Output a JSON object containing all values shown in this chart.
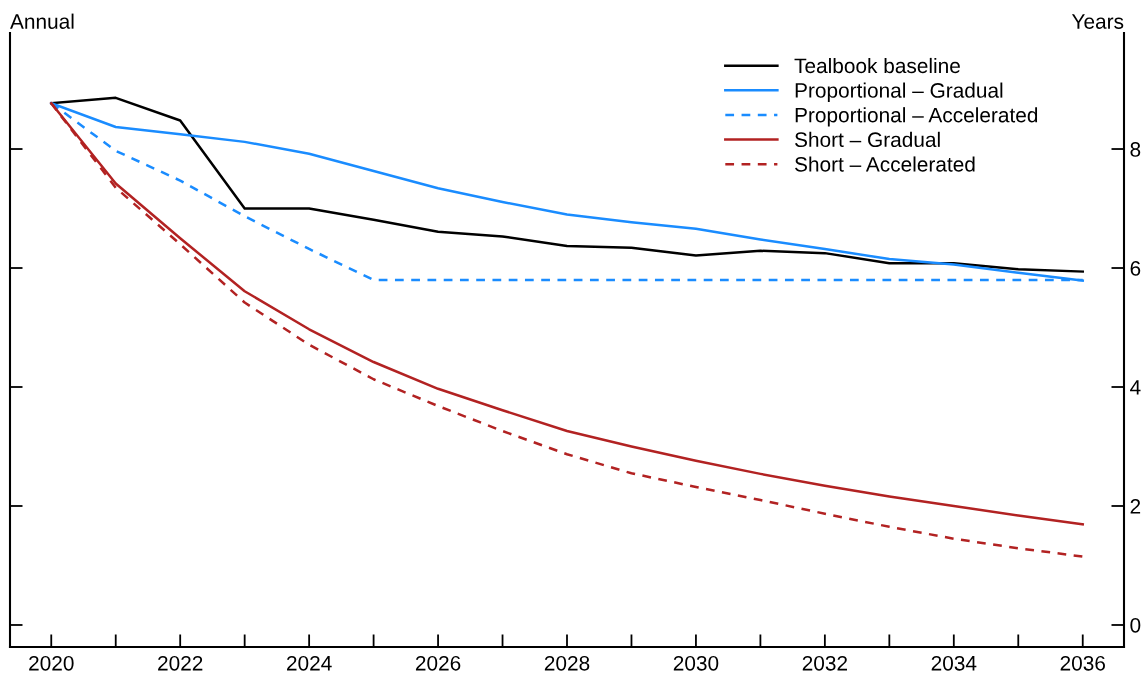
{
  "chart_data": {
    "type": "line",
    "ylabel": "Annual",
    "y2label": "Years",
    "x": [
      2020,
      2021,
      2022,
      2023,
      2024,
      2025,
      2026,
      2027,
      2028,
      2029,
      2030,
      2031,
      2032,
      2033,
      2034,
      2035,
      2036
    ],
    "series": [
      {
        "name": "Tealbook baseline",
        "color": "#000000",
        "line_style": "solid",
        "values": [
          8.77,
          8.86,
          8.48,
          7.0,
          7.0,
          6.81,
          6.61,
          6.53,
          6.37,
          6.34,
          6.21,
          6.29,
          6.25,
          6.08,
          6.08,
          5.98,
          5.94
        ]
      },
      {
        "name": "Proportional – Gradual",
        "color": "#1a8cff",
        "line_style": "solid",
        "values": [
          8.77,
          8.37,
          8.25,
          8.12,
          7.92,
          7.63,
          7.34,
          7.11,
          6.9,
          6.77,
          6.66,
          6.48,
          6.32,
          6.15,
          6.06,
          5.92,
          5.79
        ]
      },
      {
        "name": "Proportional – Accelerated",
        "color": "#1a8cff",
        "line_style": "dashed",
        "values": [
          8.77,
          7.97,
          7.47,
          6.87,
          6.32,
          5.8,
          5.8,
          5.8,
          5.8,
          5.8,
          5.8,
          5.8,
          5.8,
          5.8,
          5.8,
          5.8,
          5.8
        ]
      },
      {
        "name": "Short – Gradual",
        "color": "#b22222",
        "line_style": "solid",
        "values": [
          8.77,
          7.42,
          6.5,
          5.61,
          4.97,
          4.42,
          3.97,
          3.61,
          3.26,
          3.0,
          2.76,
          2.54,
          2.34,
          2.16,
          2.0,
          1.84,
          1.69
        ]
      },
      {
        "name": "Short – Accelerated",
        "color": "#b22222",
        "line_style": "dashed",
        "values": [
          8.77,
          7.35,
          6.4,
          5.42,
          4.71,
          4.13,
          3.68,
          3.26,
          2.87,
          2.55,
          2.32,
          2.1,
          1.87,
          1.65,
          1.45,
          1.29,
          1.15
        ]
      }
    ],
    "xlim": [
      2019.36,
      2036.64
    ],
    "xticks": [
      2020,
      {
        "value": 2021,
        "label": null
      },
      2022,
      {
        "value": 2023,
        "label": null
      },
      2024,
      {
        "value": 2025,
        "label": null
      },
      2026,
      {
        "value": 2027,
        "label": null
      },
      2028,
      {
        "value": 2029,
        "label": null
      },
      2030,
      {
        "value": 2031,
        "label": null
      },
      2032,
      {
        "value": 2033,
        "label": null
      },
      2034,
      {
        "value": 2035,
        "label": null
      },
      2036
    ],
    "ylim": [
      -0.37,
      9.95
    ],
    "yticks": [
      0,
      2,
      4,
      6,
      8
    ],
    "legend": "top right",
    "grid": false,
    "marker": "none"
  }
}
